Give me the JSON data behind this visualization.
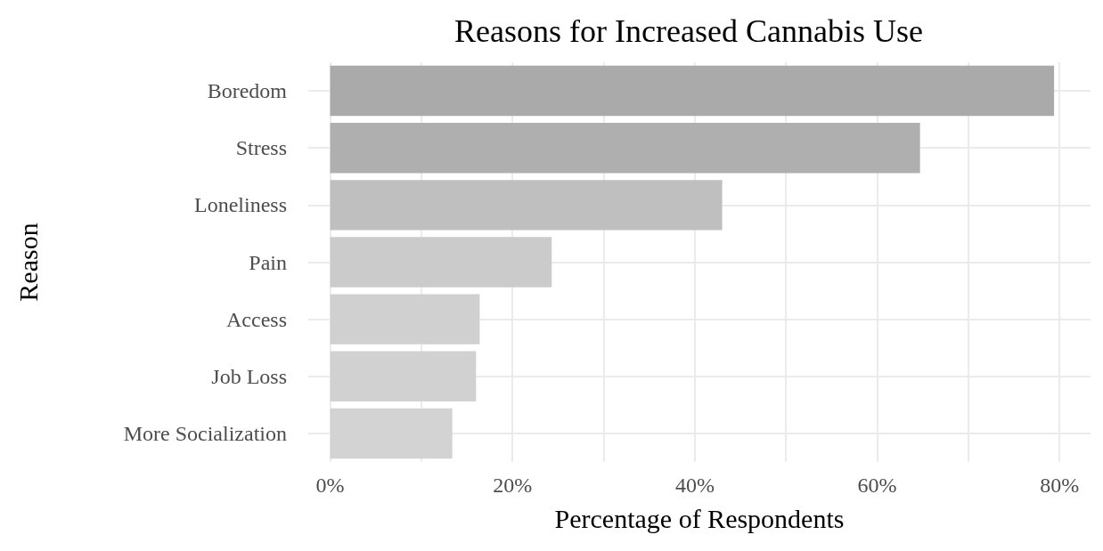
{
  "chart_data": {
    "type": "bar",
    "orientation": "horizontal",
    "title": "Reasons for Increased Cannabis Use",
    "xlabel": "Percentage of Respondents",
    "ylabel": "Reason",
    "categories": [
      "Boredom",
      "Stress",
      "Loneliness",
      "Pain",
      "Access",
      "Job Loss",
      "More Socialization"
    ],
    "values": [
      79.4,
      64.7,
      43.0,
      24.3,
      16.4,
      16.0,
      13.4
    ],
    "colors": [
      "#aaaaaa",
      "#afafaf",
      "#bfbfbf",
      "#cbcbcb",
      "#d0d0d0",
      "#d1d1d1",
      "#d3d3d3"
    ],
    "xlim": [
      -2.4,
      83.4
    ],
    "xticks": [
      {
        "value": 0,
        "label": "0%"
      },
      {
        "value": 10,
        "label": null
      },
      {
        "value": 20,
        "label": "20%"
      },
      {
        "value": 30,
        "label": null
      },
      {
        "value": 40,
        "label": "40%"
      },
      {
        "value": 50,
        "label": null
      },
      {
        "value": 60,
        "label": "60%"
      },
      {
        "value": 70,
        "label": null
      },
      {
        "value": 80,
        "label": "80%"
      }
    ],
    "grid": true
  }
}
